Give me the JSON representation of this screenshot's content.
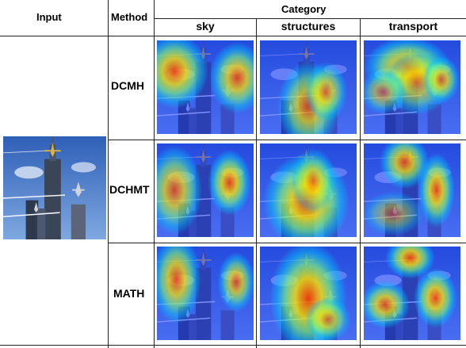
{
  "header": {
    "input": "Input",
    "method": "Method",
    "category": "Category",
    "categories": [
      "sky",
      "structures",
      "transport"
    ]
  },
  "methods": [
    "DCMH",
    "DCHMT",
    "MATH"
  ],
  "heatmaps": {
    "DCMH": {
      "sky": [
        [
          0.18,
          0.33,
          0.22,
          0.25,
          0.9
        ],
        [
          0.83,
          0.4,
          0.18,
          0.24,
          0.85
        ]
      ],
      "structures": [
        [
          0.5,
          0.7,
          0.2,
          0.3,
          0.8
        ],
        [
          0.68,
          0.55,
          0.14,
          0.2,
          0.75
        ]
      ],
      "transport": [
        [
          0.45,
          0.28,
          0.28,
          0.2,
          0.9
        ],
        [
          0.55,
          0.45,
          0.22,
          0.22,
          0.7
        ],
        [
          0.8,
          0.42,
          0.12,
          0.16,
          0.8
        ],
        [
          0.2,
          0.55,
          0.15,
          0.15,
          0.6
        ]
      ]
    },
    "DCHMT": {
      "sky": [
        [
          0.18,
          0.5,
          0.18,
          0.3,
          0.8
        ],
        [
          0.75,
          0.42,
          0.14,
          0.22,
          0.9
        ]
      ],
      "structures": [
        [
          0.48,
          0.62,
          0.28,
          0.32,
          0.95
        ],
        [
          0.55,
          0.4,
          0.15,
          0.22,
          0.7
        ]
      ],
      "transport": [
        [
          0.42,
          0.2,
          0.16,
          0.18,
          0.85
        ],
        [
          0.75,
          0.5,
          0.12,
          0.25,
          0.9
        ],
        [
          0.3,
          0.75,
          0.2,
          0.15,
          0.5
        ]
      ]
    },
    "MATH": {
      "sky": [
        [
          0.2,
          0.35,
          0.16,
          0.3,
          0.85
        ],
        [
          0.82,
          0.38,
          0.12,
          0.2,
          0.8
        ]
      ],
      "structures": [
        [
          0.5,
          0.55,
          0.25,
          0.38,
          0.95
        ],
        [
          0.7,
          0.78,
          0.15,
          0.15,
          0.7
        ]
      ],
      "transport": [
        [
          0.48,
          0.12,
          0.16,
          0.14,
          0.9
        ],
        [
          0.22,
          0.62,
          0.16,
          0.16,
          0.85
        ],
        [
          0.74,
          0.55,
          0.14,
          0.2,
          0.9
        ]
      ]
    }
  },
  "colors": {
    "rule": "#222222",
    "sky": "#4a78c8",
    "heat": [
      "#1e3cff",
      "#00c8ff",
      "#7dff7a",
      "#ffe600",
      "#ff3b00"
    ]
  }
}
